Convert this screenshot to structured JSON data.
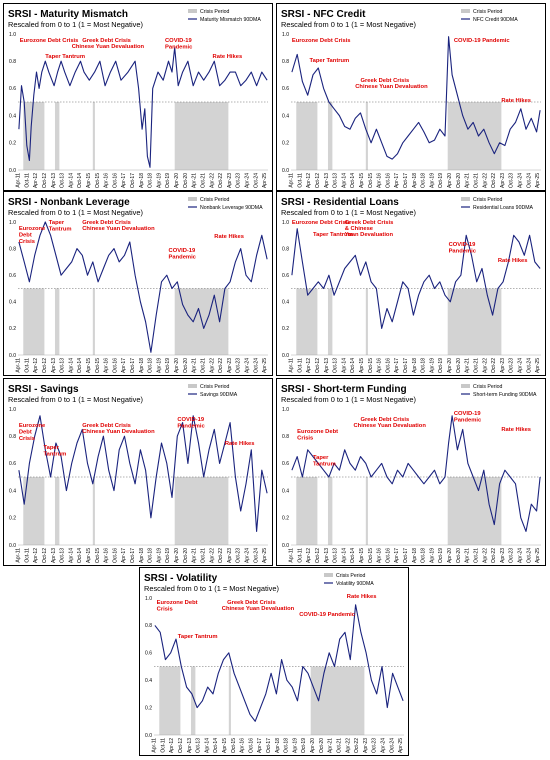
{
  "colors": {
    "line": "#1a237e",
    "crisis": "#c8c8c8",
    "annotation": "#e00000",
    "threshold": "#666666"
  },
  "common": {
    "crisis_legend": "Crisis Period",
    "y_ticks": [
      "0.0",
      "0.2",
      "0.4",
      "0.6",
      "0.8",
      "1.0"
    ],
    "x_ticks": [
      "Apr-11",
      "Oct-11",
      "Apr-12",
      "Oct-12",
      "Apr-13",
      "Oct-13",
      "Apr-14",
      "Oct-14",
      "Apr-15",
      "Oct-15",
      "Apr-16",
      "Oct-16",
      "Apr-17",
      "Oct-17",
      "Apr-18",
      "Oct-18",
      "Apr-19",
      "Oct-19",
      "Apr-20",
      "Oct-20",
      "Apr-21",
      "Oct-21",
      "Apr-22",
      "Oct-22",
      "Apr-23",
      "Oct-23",
      "Apr-24",
      "Oct-24",
      "Apr-25"
    ],
    "crisis_periods": [
      [
        2011.55,
        2012.75
      ],
      [
        2013.35,
        2013.6
      ],
      [
        2015.5,
        2015.62
      ],
      [
        2020.15,
        2023.2
      ]
    ]
  },
  "chart_data": [
    {
      "type": "line",
      "title": "SRSI - Maturity Mismatch",
      "subtitle": "Rescaled from 0 to 1 (1 = Most Negative)",
      "ylim": [
        0,
        1
      ],
      "threshold": 0.5,
      "series": [
        {
          "name": "Maturity Mismatch 90DMA",
          "x": [
            2011.3,
            2011.45,
            2011.6,
            2011.75,
            2011.9,
            2012.0,
            2012.15,
            2012.3,
            2012.45,
            2012.6,
            2012.8,
            2013.0,
            2013.3,
            2013.5,
            2013.7,
            2013.9,
            2014.2,
            2014.5,
            2014.8,
            2015.0,
            2015.3,
            2015.6,
            2015.9,
            2016.2,
            2016.5,
            2016.8,
            2017.1,
            2017.5,
            2017.9,
            2018.1,
            2018.3,
            2018.45,
            2018.6,
            2018.75,
            2018.9,
            2019.2,
            2019.5,
            2019.8,
            2020.0,
            2020.15,
            2020.35,
            2020.6,
            2020.9,
            2021.2,
            2021.5,
            2021.8,
            2022.1,
            2022.4,
            2022.7,
            2023.0,
            2023.3,
            2023.6,
            2023.9,
            2024.2,
            2024.5,
            2024.8,
            2025.1,
            2025.4
          ],
          "values": [
            0.3,
            0.62,
            0.5,
            0.18,
            0.07,
            0.32,
            0.55,
            0.72,
            0.6,
            0.72,
            0.8,
            0.72,
            0.62,
            0.72,
            0.8,
            0.72,
            0.62,
            0.72,
            0.8,
            0.72,
            0.66,
            0.72,
            0.8,
            0.62,
            0.72,
            0.8,
            0.66,
            0.72,
            0.8,
            0.6,
            0.3,
            0.45,
            0.1,
            0.02,
            0.6,
            0.72,
            0.66,
            0.8,
            0.72,
            0.9,
            0.62,
            0.72,
            0.8,
            0.62,
            0.72,
            0.66,
            0.72,
            0.8,
            0.62,
            0.66,
            0.72,
            0.72,
            0.62,
            0.66,
            0.72,
            0.62,
            0.72,
            0.66
          ]
        }
      ],
      "annotations": [
        "Eurozone Debt Crisis",
        "Taper Tantrum",
        "Greek Debt Crisis",
        "Chinese Yuan Devaluation",
        "COVID-19 Pandemic",
        "Rate Hikes"
      ]
    },
    {
      "type": "line",
      "title": "SRSI - NFC Credit",
      "subtitle": "Rescaled from 0 to 1 (1 = Most Negative)",
      "ylim": [
        0,
        1
      ],
      "threshold": 0.5,
      "series": [
        {
          "name": "NFC Credit 90DMA",
          "x": [
            2011.3,
            2011.6,
            2011.9,
            2012.2,
            2012.5,
            2012.8,
            2013.1,
            2013.4,
            2013.7,
            2014.0,
            2014.3,
            2014.6,
            2014.9,
            2015.2,
            2015.5,
            2015.8,
            2016.1,
            2016.4,
            2016.7,
            2017.0,
            2017.3,
            2017.6,
            2017.9,
            2018.2,
            2018.5,
            2018.8,
            2019.1,
            2019.4,
            2019.7,
            2020.0,
            2020.2,
            2020.4,
            2020.7,
            2021.0,
            2021.3,
            2021.6,
            2021.9,
            2022.2,
            2022.5,
            2022.8,
            2023.1,
            2023.4,
            2023.7,
            2024.0,
            2024.3,
            2024.6,
            2024.9,
            2025.2,
            2025.4
          ],
          "values": [
            0.72,
            0.85,
            0.65,
            0.55,
            0.7,
            0.75,
            0.6,
            0.5,
            0.45,
            0.4,
            0.32,
            0.3,
            0.38,
            0.42,
            0.3,
            0.2,
            0.3,
            0.2,
            0.1,
            0.08,
            0.12,
            0.2,
            0.25,
            0.3,
            0.35,
            0.28,
            0.2,
            0.22,
            0.3,
            0.25,
            0.98,
            0.7,
            0.55,
            0.4,
            0.3,
            0.35,
            0.25,
            0.3,
            0.2,
            0.12,
            0.2,
            0.18,
            0.3,
            0.35,
            0.45,
            0.3,
            0.38,
            0.28,
            0.44
          ]
        }
      ],
      "annotations": [
        "Eurozone Debt Crisis",
        "Taper Tantrum",
        "Greek Debt Crisis",
        "Chinese Yuan Devaluation",
        "COVID-19 Pandemic",
        "Rate Hikes"
      ]
    },
    {
      "type": "line",
      "title": "SRSI - Nonbank Leverage",
      "subtitle": "Rescaled from 0 to 1 (1 = Most Negative)",
      "ylim": [
        0,
        1
      ],
      "threshold": 0.5,
      "series": [
        {
          "name": "Nonbank Leverage 90DMA",
          "x": [
            2011.3,
            2011.6,
            2011.9,
            2012.2,
            2012.5,
            2012.8,
            2013.1,
            2013.4,
            2013.7,
            2014.0,
            2014.3,
            2014.6,
            2014.9,
            2015.2,
            2015.5,
            2015.8,
            2016.1,
            2016.4,
            2016.7,
            2017.0,
            2017.3,
            2017.6,
            2017.9,
            2018.2,
            2018.5,
            2018.8,
            2019.1,
            2019.4,
            2019.7,
            2020.0,
            2020.3,
            2020.6,
            2020.9,
            2021.2,
            2021.5,
            2021.8,
            2022.1,
            2022.4,
            2022.7,
            2023.0,
            2023.3,
            2023.6,
            2023.9,
            2024.2,
            2024.5,
            2024.8,
            2025.1,
            2025.4
          ],
          "values": [
            0.85,
            0.7,
            0.55,
            0.75,
            0.9,
            1.0,
            0.9,
            0.75,
            0.6,
            0.65,
            0.7,
            0.8,
            0.75,
            0.6,
            0.7,
            0.55,
            0.65,
            0.75,
            0.8,
            0.7,
            0.75,
            0.85,
            0.6,
            0.4,
            0.25,
            0.02,
            0.3,
            0.55,
            0.6,
            0.5,
            0.55,
            0.38,
            0.3,
            0.25,
            0.35,
            0.2,
            0.3,
            0.45,
            0.25,
            0.5,
            0.55,
            0.7,
            0.8,
            0.6,
            0.55,
            0.75,
            0.9,
            0.72
          ]
        }
      ],
      "annotations": [
        "Eurozone Debt Crisis",
        "Taper Tantrum",
        "Greek Debt Crisis",
        "Chinese Yuan Devaluation",
        "COVID-19 Pandemic",
        "Rate Hikes"
      ]
    },
    {
      "type": "line",
      "title": "SRSI - Residential Loans",
      "subtitle": "Rescaled from 0 to 1 (1 = Most Negative)",
      "ylim": [
        0,
        1
      ],
      "threshold": 0.5,
      "series": [
        {
          "name": "Residential Loans 90DMA",
          "x": [
            2011.3,
            2011.6,
            2011.9,
            2012.2,
            2012.5,
            2012.8,
            2013.1,
            2013.4,
            2013.7,
            2014.0,
            2014.3,
            2014.6,
            2014.9,
            2015.2,
            2015.5,
            2015.8,
            2016.1,
            2016.4,
            2016.7,
            2017.0,
            2017.3,
            2017.6,
            2017.9,
            2018.2,
            2018.5,
            2018.8,
            2019.1,
            2019.4,
            2019.7,
            2020.0,
            2020.3,
            2020.6,
            2020.9,
            2021.2,
            2021.5,
            2021.8,
            2022.1,
            2022.4,
            2022.7,
            2023.0,
            2023.3,
            2023.6,
            2023.9,
            2024.2,
            2024.5,
            2024.8,
            2025.1,
            2025.4
          ],
          "values": [
            0.6,
            0.95,
            0.7,
            0.45,
            0.5,
            0.55,
            0.5,
            0.6,
            0.45,
            0.55,
            0.65,
            0.7,
            0.75,
            0.6,
            0.7,
            0.55,
            0.5,
            0.2,
            0.35,
            0.25,
            0.4,
            0.55,
            0.5,
            0.3,
            0.45,
            0.55,
            0.6,
            0.5,
            0.55,
            0.45,
            0.4,
            0.55,
            0.6,
            0.9,
            0.75,
            0.55,
            0.65,
            0.45,
            0.3,
            0.5,
            0.55,
            0.7,
            0.9,
            0.85,
            0.75,
            0.9,
            0.7,
            0.65
          ]
        }
      ],
      "annotations": [
        "Eurozone Debt Crisis",
        "Taper Tantrum",
        "Greek Debt Crisis",
        "& Chinese",
        "Yuan Devaluation",
        "COVID-19 Pandemic",
        "Rate Hikes"
      ]
    },
    {
      "type": "line",
      "title": "SRSI - Savings",
      "subtitle": "Rescaled from 0 to 1 (1 = Most Negative)",
      "ylim": [
        0,
        1
      ],
      "threshold": 0.5,
      "series": [
        {
          "name": "Savings 90DMA",
          "x": [
            2011.3,
            2011.6,
            2011.9,
            2012.2,
            2012.5,
            2012.8,
            2013.1,
            2013.4,
            2013.7,
            2014.0,
            2014.3,
            2014.6,
            2014.9,
            2015.2,
            2015.5,
            2015.8,
            2016.1,
            2016.4,
            2016.7,
            2017.0,
            2017.3,
            2017.6,
            2017.9,
            2018.2,
            2018.5,
            2018.8,
            2019.1,
            2019.4,
            2019.7,
            2020.0,
            2020.3,
            2020.6,
            2020.9,
            2021.2,
            2021.5,
            2021.8,
            2022.1,
            2022.4,
            2022.7,
            2023.0,
            2023.3,
            2023.6,
            2023.9,
            2024.2,
            2024.5,
            2024.8,
            2025.1,
            2025.4
          ],
          "values": [
            0.55,
            0.3,
            0.6,
            0.8,
            0.95,
            0.7,
            0.5,
            0.75,
            0.65,
            0.4,
            0.6,
            0.75,
            0.85,
            0.6,
            0.45,
            0.65,
            0.8,
            0.55,
            0.4,
            0.7,
            0.8,
            0.6,
            0.45,
            0.7,
            0.55,
            0.2,
            0.5,
            0.75,
            0.6,
            0.35,
            0.8,
            0.9,
            0.6,
            0.95,
            0.75,
            0.5,
            0.7,
            0.85,
            0.6,
            0.75,
            0.9,
            0.5,
            0.25,
            0.45,
            0.7,
            0.1,
            0.55,
            0.38
          ]
        }
      ],
      "annotations": [
        "Eurozone Debt Crisis",
        "Taper Tantrum",
        "Greek Debt Crisis",
        "Chinese Yuan Devaluation",
        "COVID-19 Pandemic",
        "Rate Hikes"
      ]
    },
    {
      "type": "line",
      "title": "SRSI - Short-term Funding",
      "subtitle": "Rescaled from 0 to 1 (1 = Most Negative)",
      "ylim": [
        0,
        1
      ],
      "threshold": 0.5,
      "series": [
        {
          "name": "Short-term Funding 90DMA",
          "x": [
            2011.3,
            2011.6,
            2011.9,
            2012.2,
            2012.5,
            2012.8,
            2013.1,
            2013.4,
            2013.7,
            2014.0,
            2014.3,
            2014.6,
            2014.9,
            2015.2,
            2015.5,
            2015.8,
            2016.1,
            2016.4,
            2016.7,
            2017.0,
            2017.3,
            2017.6,
            2017.9,
            2018.2,
            2018.5,
            2018.8,
            2019.1,
            2019.4,
            2019.7,
            2020.0,
            2020.2,
            2020.4,
            2020.7,
            2021.0,
            2021.3,
            2021.6,
            2021.9,
            2022.2,
            2022.5,
            2022.8,
            2023.1,
            2023.4,
            2023.7,
            2024.0,
            2024.3,
            2024.6,
            2024.9,
            2025.2,
            2025.4
          ],
          "values": [
            0.55,
            0.65,
            0.5,
            0.7,
            0.65,
            0.6,
            0.55,
            0.5,
            0.6,
            0.55,
            0.7,
            0.6,
            0.55,
            0.65,
            0.6,
            0.5,
            0.55,
            0.6,
            0.5,
            0.45,
            0.55,
            0.5,
            0.6,
            0.55,
            0.5,
            0.45,
            0.5,
            0.55,
            0.45,
            0.5,
            0.75,
            0.95,
            0.7,
            0.85,
            0.6,
            0.5,
            0.4,
            0.55,
            0.3,
            0.15,
            0.45,
            0.55,
            0.5,
            0.45,
            0.2,
            0.1,
            0.3,
            0.25,
            0.5
          ]
        }
      ],
      "annotations": [
        "Eurozone Debt Crisis",
        "Taper Tantrum",
        "Greek Debt Crisis",
        "Chinese Yuan Devaluation",
        "COVID-19 Pandemic",
        "Rate Hikes"
      ]
    },
    {
      "type": "line",
      "title": "SRSI - Volatility",
      "subtitle": "Rescaled from 0 to 1 (1 = Most Negative)",
      "ylim": [
        0,
        1
      ],
      "threshold": 0.5,
      "series": [
        {
          "name": "Volatility 90DMA",
          "x": [
            2011.3,
            2011.6,
            2011.9,
            2012.2,
            2012.5,
            2012.8,
            2013.1,
            2013.4,
            2013.7,
            2014.0,
            2014.3,
            2014.6,
            2014.9,
            2015.2,
            2015.5,
            2015.8,
            2016.1,
            2016.4,
            2016.7,
            2017.0,
            2017.3,
            2017.6,
            2017.9,
            2018.2,
            2018.5,
            2018.8,
            2019.1,
            2019.4,
            2019.7,
            2020.0,
            2020.3,
            2020.6,
            2020.9,
            2021.2,
            2021.5,
            2021.8,
            2022.1,
            2022.4,
            2022.7,
            2023.0,
            2023.3,
            2023.6,
            2023.9,
            2024.2,
            2024.5,
            2024.8,
            2025.1,
            2025.4
          ],
          "values": [
            0.8,
            0.75,
            0.55,
            0.6,
            0.7,
            0.5,
            0.35,
            0.3,
            0.2,
            0.25,
            0.35,
            0.3,
            0.45,
            0.55,
            0.6,
            0.45,
            0.35,
            0.25,
            0.15,
            0.1,
            0.2,
            0.3,
            0.45,
            0.3,
            0.55,
            0.4,
            0.35,
            0.25,
            0.5,
            0.45,
            0.35,
            0.25,
            0.45,
            0.6,
            0.5,
            0.7,
            0.75,
            0.55,
            0.95,
            0.75,
            0.6,
            0.4,
            0.3,
            0.5,
            0.2,
            0.45,
            0.35,
            0.25
          ]
        }
      ],
      "annotations": [
        "Eurozone Debt Crisis",
        "Taper Tantrum",
        "Greek Debt Crisis",
        "Chinese Yuan Devaluation",
        "COVID-19 Pandemic",
        "Rate Hikes"
      ]
    }
  ]
}
